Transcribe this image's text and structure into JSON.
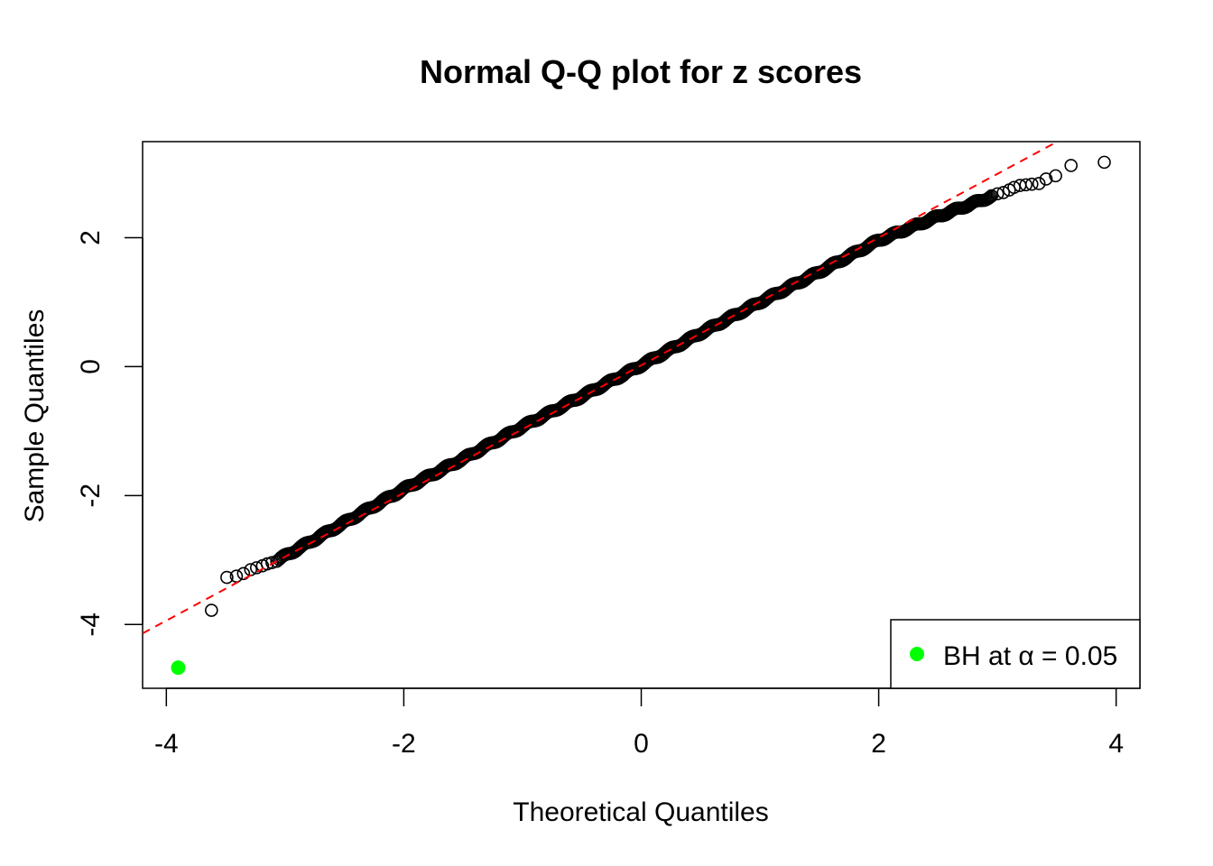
{
  "chart_data": {
    "type": "scatter",
    "title": "Normal Q-Q plot for z scores",
    "xlabel": "Theoretical Quantiles",
    "ylabel": "Sample Quantiles",
    "xlim": [
      -4.2,
      4.2
    ],
    "ylim": [
      -4.99,
      3.49
    ],
    "x_ticks": [
      -4,
      -2,
      0,
      2,
      4
    ],
    "x_tick_labels": [
      "-4",
      "-2",
      "0",
      "2",
      "4"
    ],
    "y_ticks": [
      -4,
      -2,
      0,
      2
    ],
    "y_tick_labels": [
      "-4",
      "-2",
      "0",
      "2"
    ],
    "grid": false,
    "reference_line": {
      "style": "dashed",
      "color": "#ff0000",
      "intercept": 0.02,
      "slope": 0.99
    },
    "highlighted_points": [
      {
        "x": -3.9,
        "y": -4.67,
        "label": "BH at α = 0.05",
        "color": "#00ff00"
      }
    ],
    "outlier_points": [
      {
        "x": -3.62,
        "y": -3.78
      },
      {
        "x": -3.49,
        "y": -3.27
      },
      {
        "x": -3.41,
        "y": -3.25
      },
      {
        "x": -3.35,
        "y": -3.21
      },
      {
        "x": -3.29,
        "y": -3.15
      },
      {
        "x": -3.24,
        "y": -3.12
      },
      {
        "x": -3.19,
        "y": -3.09
      },
      {
        "x": -3.15,
        "y": -3.06
      },
      {
        "x": -3.11,
        "y": -3.04
      },
      {
        "x": -3.07,
        "y": -3.02
      },
      {
        "x": 2.95,
        "y": 2.65
      },
      {
        "x": 3.0,
        "y": 2.68
      },
      {
        "x": 3.05,
        "y": 2.7
      },
      {
        "x": 3.1,
        "y": 2.74
      },
      {
        "x": 3.14,
        "y": 2.78
      },
      {
        "x": 3.19,
        "y": 2.81
      },
      {
        "x": 3.24,
        "y": 2.82
      },
      {
        "x": 3.29,
        "y": 2.83
      },
      {
        "x": 3.35,
        "y": 2.84
      },
      {
        "x": 3.41,
        "y": 2.91
      },
      {
        "x": 3.49,
        "y": 2.96
      },
      {
        "x": 3.62,
        "y": 3.12
      },
      {
        "x": 3.9,
        "y": 3.17
      }
    ],
    "dense_series": {
      "x_range": [
        -3.05,
        2.95
      ],
      "curve": [
        [
          -3.05,
          -2.99
        ],
        [
          -2.5,
          -2.42
        ],
        [
          -2.0,
          -1.9
        ],
        [
          -1.5,
          -1.43
        ],
        [
          -1.0,
          -0.93
        ],
        [
          -0.5,
          -0.46
        ],
        [
          0.0,
          0.02
        ],
        [
          0.5,
          0.52
        ],
        [
          1.0,
          1.0
        ],
        [
          1.5,
          1.47
        ],
        [
          2.0,
          1.96
        ],
        [
          2.5,
          2.33
        ],
        [
          2.95,
          2.64
        ]
      ]
    },
    "legend": {
      "position": "bottom-right",
      "entries": [
        {
          "label": "BH at α = 0.05",
          "color": "#00ff00",
          "marker": "filled-circle"
        }
      ]
    }
  }
}
